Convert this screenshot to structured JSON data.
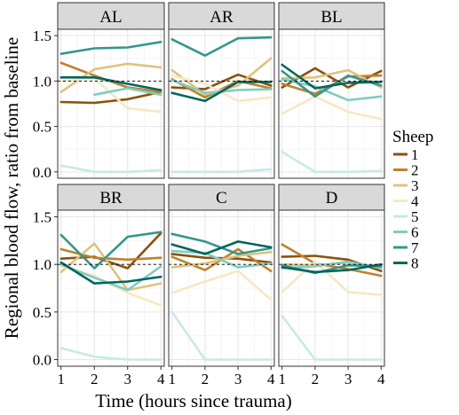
{
  "chart_data": {
    "type": "line",
    "xlabel": "Time (hours since trauma)",
    "ylabel": "Regional blood flow, ratio from baseline",
    "x": [
      1,
      2,
      3,
      4
    ],
    "xticks": [
      "1",
      "2",
      "3",
      "4"
    ],
    "ylim": [
      -0.07,
      1.57
    ],
    "yticks": [
      "0.0",
      "0.5",
      "1.0",
      "1.5"
    ],
    "ytick_values": [
      0,
      0.5,
      1,
      1.5
    ],
    "reference_line": 1.0,
    "grid": true,
    "legend": {
      "title": "Sheep",
      "placement": "right",
      "entries": [
        "1",
        "2",
        "3",
        "4",
        "5",
        "6",
        "7",
        "8"
      ]
    },
    "colors": [
      "#8c510a",
      "#bf812d",
      "#dfc27d",
      "#f6e8c3",
      "#c7eae5",
      "#80cdc1",
      "#35978f",
      "#01665e"
    ],
    "panels": [
      {
        "label": "AL",
        "series": [
          {
            "name": "1",
            "values": [
              0.77,
              0.76,
              0.8,
              0.88
            ]
          },
          {
            "name": "2",
            "values": [
              1.2,
              1.06,
              0.93,
              0.88
            ]
          },
          {
            "name": "3",
            "values": [
              0.88,
              1.13,
              1.19,
              1.15
            ]
          },
          {
            "name": "4",
            "values": [
              1.0,
              1.03,
              0.7,
              0.66
            ]
          },
          {
            "name": "5",
            "values": [
              0.07,
              0.0,
              0.0,
              0.02
            ]
          },
          {
            "name": "6",
            "values": [
              null,
              0.85,
              0.92,
              0.85
            ]
          },
          {
            "name": "7",
            "values": [
              1.3,
              1.36,
              1.37,
              1.43
            ]
          },
          {
            "name": "8",
            "values": [
              1.04,
              1.04,
              0.97,
              0.9
            ]
          }
        ]
      },
      {
        "label": "AR",
        "series": [
          {
            "name": "1",
            "values": [
              0.93,
              0.91,
              1.07,
              0.95
            ]
          },
          {
            "name": "2",
            "values": [
              1.02,
              0.82,
              1.0,
              0.92
            ]
          },
          {
            "name": "3",
            "values": [
              1.12,
              0.85,
              0.95,
              1.25
            ]
          },
          {
            "name": "4",
            "values": [
              1.06,
              0.97,
              0.78,
              0.82
            ]
          },
          {
            "name": "5",
            "values": [
              0.0,
              0.0,
              0.0,
              0.03
            ]
          },
          {
            "name": "6",
            "values": [
              1.01,
              0.87,
              0.9,
              0.91
            ]
          },
          {
            "name": "7",
            "values": [
              1.46,
              1.28,
              1.47,
              1.48
            ]
          },
          {
            "name": "8",
            "values": [
              0.87,
              0.78,
              0.99,
              0.99
            ]
          }
        ]
      },
      {
        "label": "BL",
        "series": [
          {
            "name": "1",
            "values": [
              0.93,
              1.14,
              0.93,
              1.11
            ]
          },
          {
            "name": "2",
            "values": [
              0.97,
              0.86,
              1.05,
              1.06
            ]
          },
          {
            "name": "3",
            "values": [
              1.03,
              1.04,
              1.12,
              0.93
            ]
          },
          {
            "name": "4",
            "values": [
              0.64,
              0.83,
              0.66,
              0.58
            ]
          },
          {
            "name": "5",
            "values": [
              0.22,
              0.0,
              0.0,
              0.01
            ]
          },
          {
            "name": "6",
            "values": [
              1.02,
              0.94,
              0.79,
              0.83
            ]
          },
          {
            "name": "7",
            "values": [
              1.11,
              0.83,
              1.06,
              0.95
            ]
          },
          {
            "name": "8",
            "values": [
              1.18,
              0.92,
              0.98,
              0.99
            ]
          }
        ]
      },
      {
        "label": "BR",
        "series": [
          {
            "name": "1",
            "values": [
              1.06,
              1.08,
              0.96,
              1.33
            ]
          },
          {
            "name": "2",
            "values": [
              1.16,
              1.07,
              1.05,
              1.07
            ]
          },
          {
            "name": "3",
            "values": [
              0.92,
              1.22,
              0.73,
              0.8
            ]
          },
          {
            "name": "4",
            "values": [
              0.98,
              0.88,
              0.7,
              0.57
            ]
          },
          {
            "name": "5",
            "values": [
              0.12,
              0.03,
              0.0,
              0.0
            ]
          },
          {
            "name": "6",
            "values": [
              1.0,
              0.86,
              0.73,
              0.98
            ]
          },
          {
            "name": "7",
            "values": [
              1.31,
              0.96,
              1.29,
              1.34
            ]
          },
          {
            "name": "8",
            "values": [
              1.02,
              0.8,
              0.82,
              0.87
            ]
          }
        ]
      },
      {
        "label": "C",
        "series": [
          {
            "name": "1",
            "values": [
              1.11,
              1.07,
              1.06,
              1.02
            ]
          },
          {
            "name": "2",
            "values": [
              1.08,
              0.94,
              1.16,
              0.93
            ]
          },
          {
            "name": "3",
            "values": [
              0.97,
              1.01,
              1.09,
              1.13
            ]
          },
          {
            "name": "4",
            "values": [
              0.7,
              0.82,
              0.93,
              0.63
            ]
          },
          {
            "name": "5",
            "values": [
              0.5,
              0.0,
              0.0,
              0.0
            ]
          },
          {
            "name": "6",
            "values": [
              1.14,
              1.12,
              0.97,
              1.01
            ]
          },
          {
            "name": "7",
            "values": [
              1.32,
              1.24,
              1.11,
              1.17
            ]
          },
          {
            "name": "8",
            "values": [
              1.21,
              1.11,
              1.24,
              1.18
            ]
          }
        ]
      },
      {
        "label": "D",
        "series": [
          {
            "name": "1",
            "values": [
              1.08,
              1.09,
              1.05,
              0.93
            ]
          },
          {
            "name": "2",
            "values": [
              1.21,
              1.01,
              0.95,
              0.88
            ]
          },
          {
            "name": "3",
            "values": [
              1.0,
              0.99,
              1.02,
              0.97
            ]
          },
          {
            "name": "4",
            "values": [
              0.71,
              1.03,
              0.71,
              0.68
            ]
          },
          {
            "name": "5",
            "values": [
              0.46,
              0.0,
              0.0,
              0.0
            ]
          },
          {
            "name": "6",
            "values": [
              0.96,
              0.98,
              1.03,
              0.96
            ]
          },
          {
            "name": "7",
            "values": [
              0.99,
              0.91,
              0.99,
              0.98
            ]
          },
          {
            "name": "8",
            "values": [
              0.97,
              0.92,
              0.94,
              1.0
            ]
          }
        ]
      }
    ]
  }
}
